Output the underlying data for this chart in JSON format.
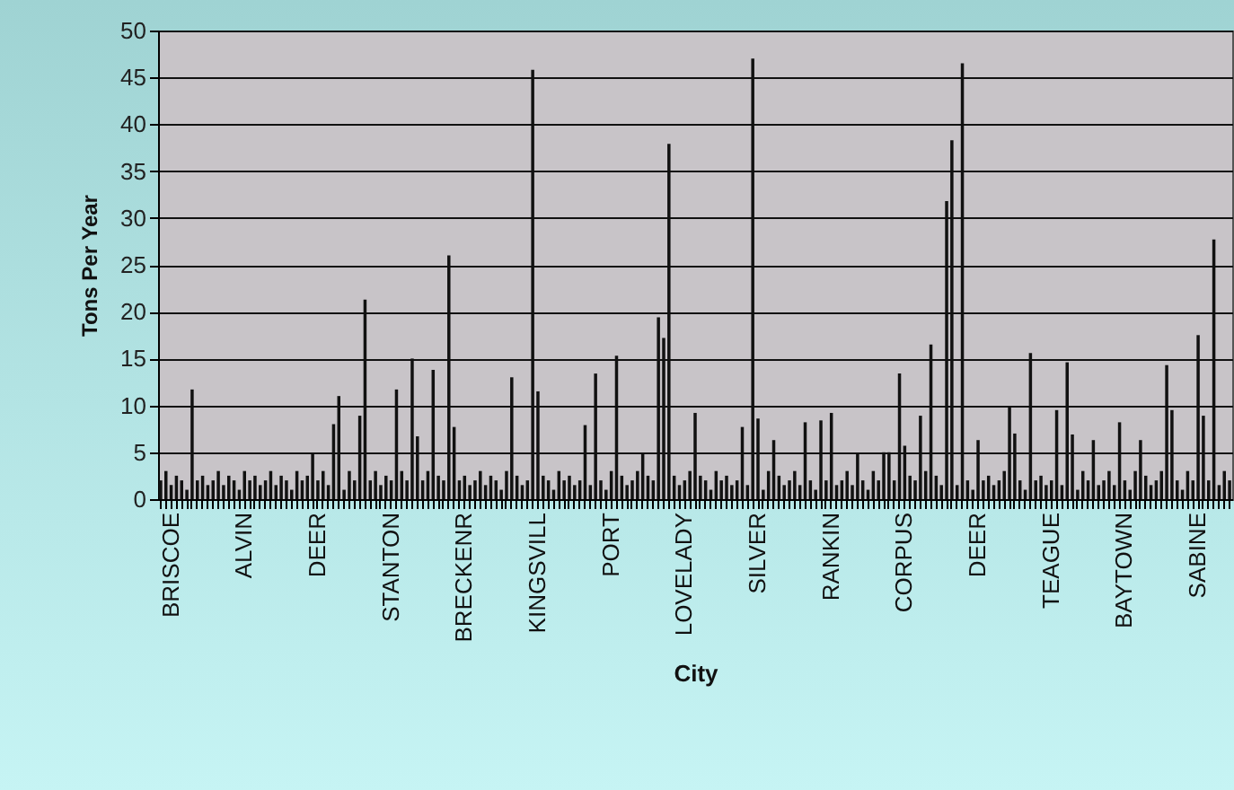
{
  "chart_data": {
    "type": "bar",
    "xlabel": "City",
    "ylabel": "Tons Per Year",
    "categories": [
      null,
      null,
      "BRISCOE",
      null,
      null,
      null,
      null,
      null,
      null,
      null,
      null,
      null,
      null,
      null,
      null,
      null,
      "ALVIN",
      null,
      null,
      null,
      null,
      null,
      null,
      null,
      null,
      null,
      null,
      null,
      null,
      null,
      "DEER",
      null,
      null,
      null,
      null,
      null,
      null,
      null,
      null,
      null,
      null,
      null,
      null,
      null,
      "STANTON",
      null,
      null,
      null,
      null,
      null,
      null,
      null,
      null,
      null,
      null,
      null,
      null,
      null,
      "BRECKENR",
      null,
      null,
      null,
      null,
      null,
      null,
      null,
      null,
      null,
      null,
      null,
      null,
      null,
      "KINGSVILL",
      null,
      null,
      null,
      null,
      null,
      null,
      null,
      null,
      null,
      null,
      null,
      null,
      null,
      "PORT",
      null,
      null,
      null,
      null,
      null,
      null,
      null,
      null,
      null,
      null,
      null,
      null,
      null,
      "LOVELADY",
      null,
      null,
      null,
      null,
      null,
      null,
      null,
      null,
      null,
      null,
      null,
      null,
      null,
      "SILVER",
      null,
      null,
      null,
      null,
      null,
      null,
      null,
      null,
      null,
      null,
      null,
      null,
      null,
      "RANKIN",
      null,
      null,
      null,
      null,
      null,
      null,
      null,
      null,
      null,
      null,
      null,
      null,
      null,
      "CORPUS",
      null,
      null,
      null,
      null,
      null,
      null,
      null,
      null,
      null,
      null,
      null,
      null,
      null,
      "DEER",
      null,
      null,
      null,
      null,
      null,
      null,
      null,
      null,
      null,
      null,
      null,
      null,
      null,
      "TEAGUE",
      null,
      null,
      null,
      null,
      null,
      null,
      null,
      null,
      null,
      null,
      null,
      null,
      null,
      "BAYTOWN",
      null,
      null,
      null,
      null,
      null,
      null,
      null,
      null,
      null,
      null,
      null,
      null,
      null,
      "SABINE",
      null,
      null,
      null,
      null,
      null,
      null
    ],
    "values": [
      2,
      3,
      1.5,
      2.5,
      2,
      1,
      11.7,
      2,
      2.5,
      1.5,
      2,
      3,
      1.5,
      2.5,
      2,
      1,
      3,
      2,
      2.5,
      1.5,
      2,
      3,
      1.5,
      2.5,
      2,
      1,
      3,
      2,
      2.5,
      4.8,
      2,
      3,
      1.5,
      8,
      11,
      1,
      3,
      2,
      8.9,
      21.3,
      2,
      3,
      1.5,
      2.5,
      2,
      11.7,
      3,
      2,
      15,
      6.7,
      2,
      3,
      13.8,
      2.5,
      2,
      26,
      7.7,
      2,
      2.5,
      1.5,
      2,
      3,
      1.5,
      2.5,
      2,
      1,
      3,
      13,
      2.5,
      1.5,
      2,
      45.8,
      11.5,
      2.5,
      2,
      1,
      3,
      2,
      2.5,
      1.5,
      2,
      7.9,
      1.5,
      13.4,
      2,
      1,
      3,
      15.3,
      2.5,
      1.5,
      2,
      3,
      4.8,
      2.5,
      2,
      19.4,
      17.2,
      37.9,
      2.5,
      1.5,
      2,
      3,
      9.2,
      2.5,
      2,
      1,
      3,
      2,
      2.5,
      1.5,
      2,
      7.7,
      1.5,
      47,
      8.6,
      1,
      3,
      6.3,
      2.5,
      1.5,
      2,
      3,
      1.5,
      8.2,
      2,
      1,
      8.4,
      2,
      9.2,
      1.5,
      2,
      3,
      1.5,
      4.8,
      2,
      1,
      3,
      2,
      5,
      5,
      2,
      13.4,
      5.7,
      2.5,
      2,
      8.9,
      3,
      16.5,
      2.5,
      1.5,
      31.8,
      38.3,
      1.5,
      46.5,
      2,
      1,
      6.3,
      2,
      2.5,
      1.5,
      2,
      3,
      9.8,
      7,
      2,
      1,
      15.6,
      2,
      2.5,
      1.5,
      2,
      9.5,
      1.5,
      14.6,
      6.9,
      1,
      3,
      2,
      6.3,
      1.5,
      2,
      3,
      1.5,
      8.2,
      2,
      1,
      3,
      6.3,
      2.5,
      1.5,
      2,
      3,
      14.3,
      9.5,
      2,
      1,
      3,
      2,
      17.5,
      8.9,
      2,
      27.7,
      1.5,
      3,
      2
    ],
    "color": "#111111",
    "ylim": [
      0,
      50
    ],
    "yticks": [
      0,
      5,
      10,
      15,
      20,
      25,
      30,
      35,
      40,
      45,
      50
    ],
    "grid": "y"
  }
}
